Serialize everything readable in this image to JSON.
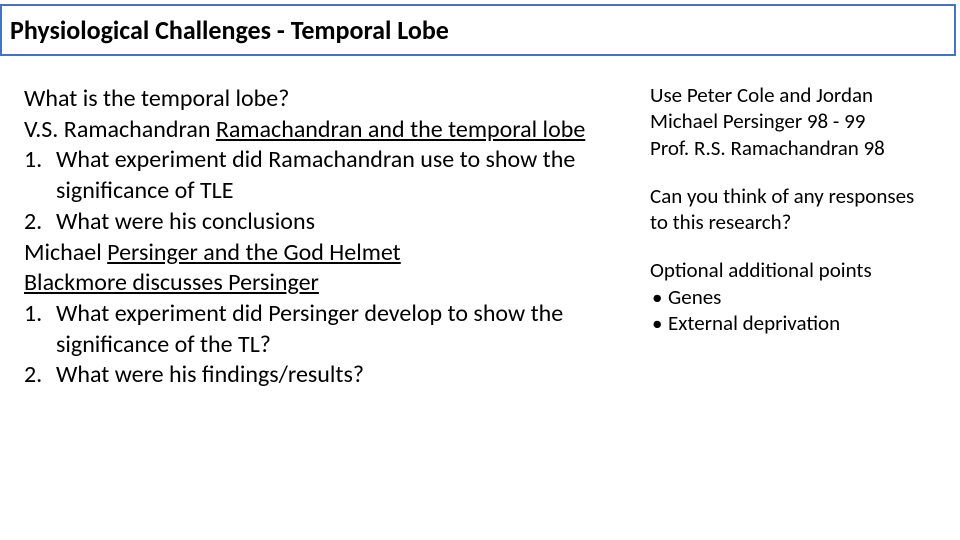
{
  "title": "Physiological Challenges - Temporal Lobe",
  "main": {
    "intro_q": "What is the temporal lobe?",
    "ramachandran_pre": "V.S. Ramachandran  ",
    "ramachandran_link": "Ramachandran and the temporal lobe",
    "q1_num": "1.",
    "q1_text": "What experiment did Ramachandran use to show the significance of TLE",
    "q2_num": "2.",
    "q2_text": "What were his conclusions",
    "persinger_pre": "Michael ",
    "persinger_link": "Persinger and the God Helmet",
    "blackmore_link": "Blackmore discusses Persinger",
    "q3_num": "1.",
    "q3_text": "What experiment did Persinger develop to show the significance of the TL?",
    "q4_num": "2.",
    "q4_text": "What were his findings/results?"
  },
  "side": {
    "ref1": "Use Peter Cole and Jordan",
    "ref2": "Michael Persinger 98 - 99",
    "ref3": "Prof. R.S. Ramachandran 98",
    "prompt": "Can you think of any responses to this research?",
    "opt_heading": "Optional additional points",
    "opt_b1": "Genes",
    "opt_b2": "External deprivation"
  },
  "colors": {
    "border": "#4472c4",
    "bg": "#ffffff",
    "text": "#000000"
  }
}
